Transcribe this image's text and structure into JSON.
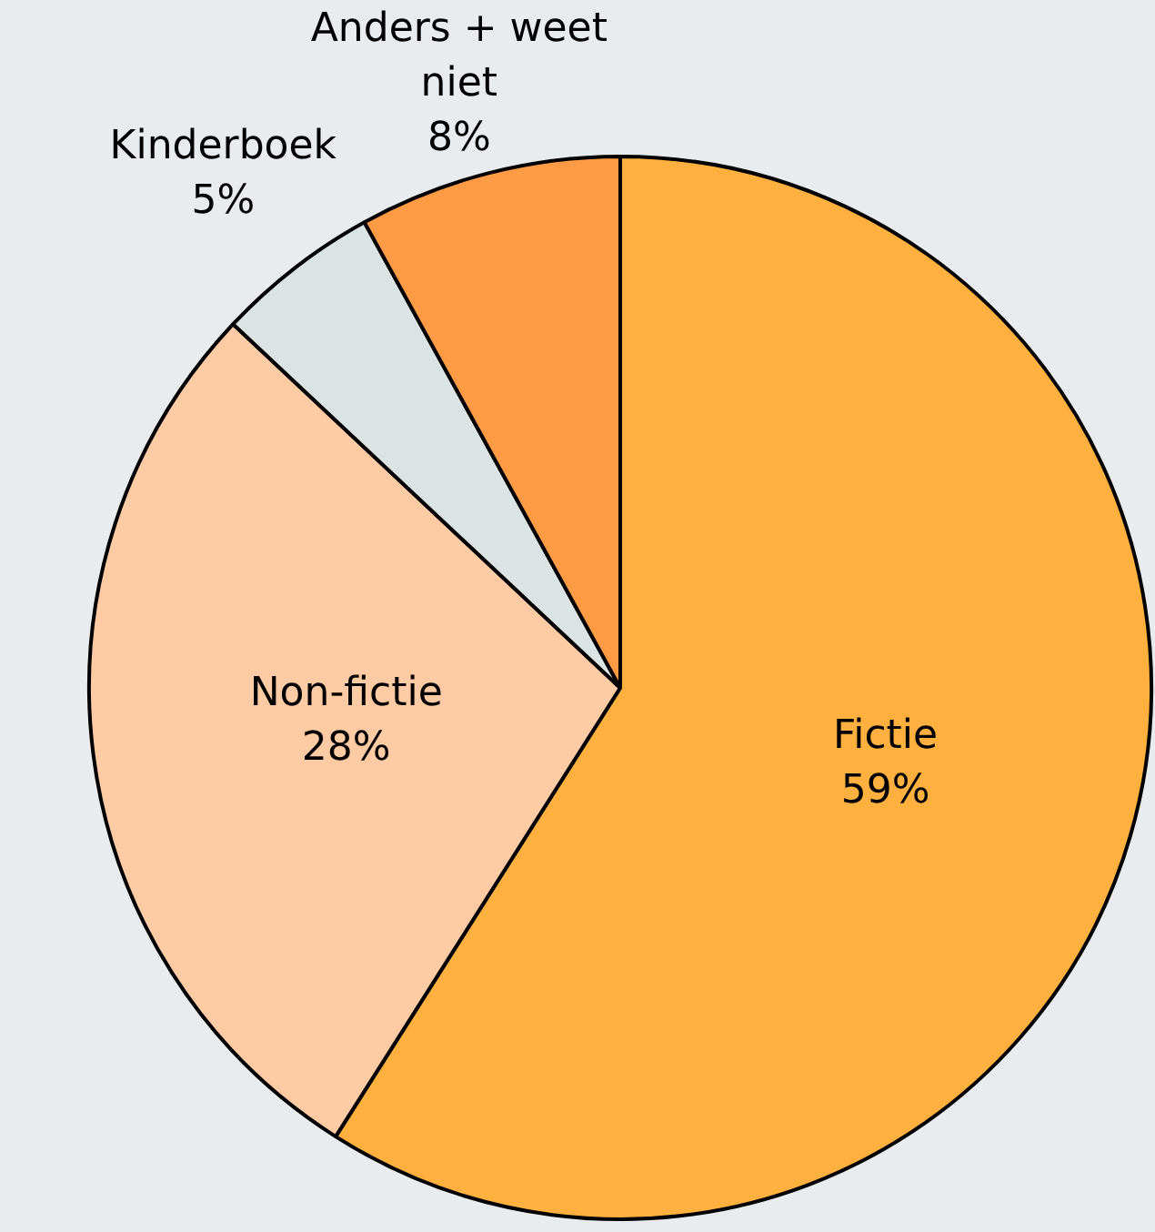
{
  "chart_data": {
    "type": "pie",
    "categories": [
      "Fictie",
      "Non-fictie",
      "Kinderboek",
      "Anders + weet niet"
    ],
    "values": [
      59,
      28,
      5,
      8
    ],
    "value_labels": [
      "59%",
      "28%",
      "5%",
      "8%"
    ],
    "colors": [
      "#ffb03f",
      "#ffcba5",
      "#dce3e3",
      "#ff9a45"
    ],
    "legend": false
  }
}
